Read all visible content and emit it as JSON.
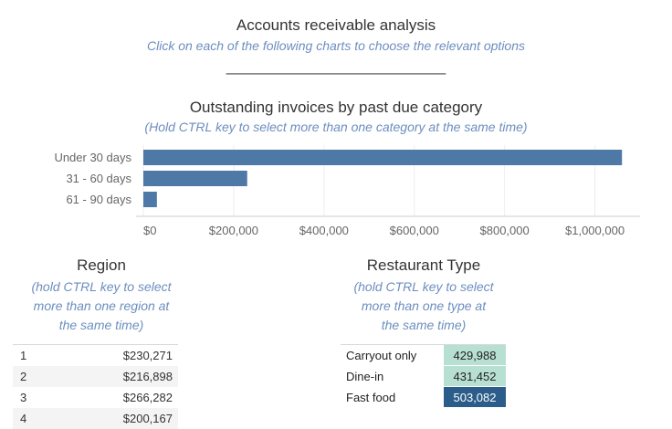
{
  "header": {
    "title": "Accounts receivable analysis",
    "subtitle": "Click on each of the following charts to choose the relevant options",
    "divider": "________________________"
  },
  "past_due": {
    "title": "Outstanding invoices by past due category",
    "subtitle": "(Hold CTRL key to select more than one category at the same time)"
  },
  "chart_data": {
    "type": "bar",
    "orientation": "horizontal",
    "categories": [
      "Under 30 days",
      "31 - 60 days",
      "61 - 90 days"
    ],
    "values": [
      1060000,
      230000,
      30000
    ],
    "xlim": [
      0,
      1100000
    ],
    "xticks": [
      0,
      200000,
      400000,
      600000,
      800000,
      1000000
    ],
    "xtick_labels": [
      "$0",
      "$200,000",
      "$400,000",
      "$600,000",
      "$800,000",
      "$1,000,000"
    ],
    "color": "#4e79a7",
    "grid": true
  },
  "region": {
    "title": "Region",
    "subtitle_lines": [
      "(hold CTRL key to select",
      "more than one region at",
      "the same time)"
    ],
    "rows": [
      {
        "label": "1",
        "value": "$230,271"
      },
      {
        "label": "2",
        "value": "$216,898"
      },
      {
        "label": "3",
        "value": "$266,282"
      },
      {
        "label": "4",
        "value": "$200,167"
      }
    ]
  },
  "restaurant_type": {
    "title": "Restaurant Type",
    "subtitle_lines": [
      "(hold CTRL key to select",
      "more than one type at",
      "the same time)"
    ],
    "rows": [
      {
        "label": "Carryout only",
        "value": "429,988",
        "color": "#b8e0d2",
        "text_color": "#222222"
      },
      {
        "label": "Dine-in",
        "value": "431,452",
        "color": "#b8e0d2",
        "text_color": "#222222"
      },
      {
        "label": "Fast food",
        "value": "503,082",
        "color": "#2b5c8a",
        "text_color": "#ffffff"
      }
    ]
  }
}
